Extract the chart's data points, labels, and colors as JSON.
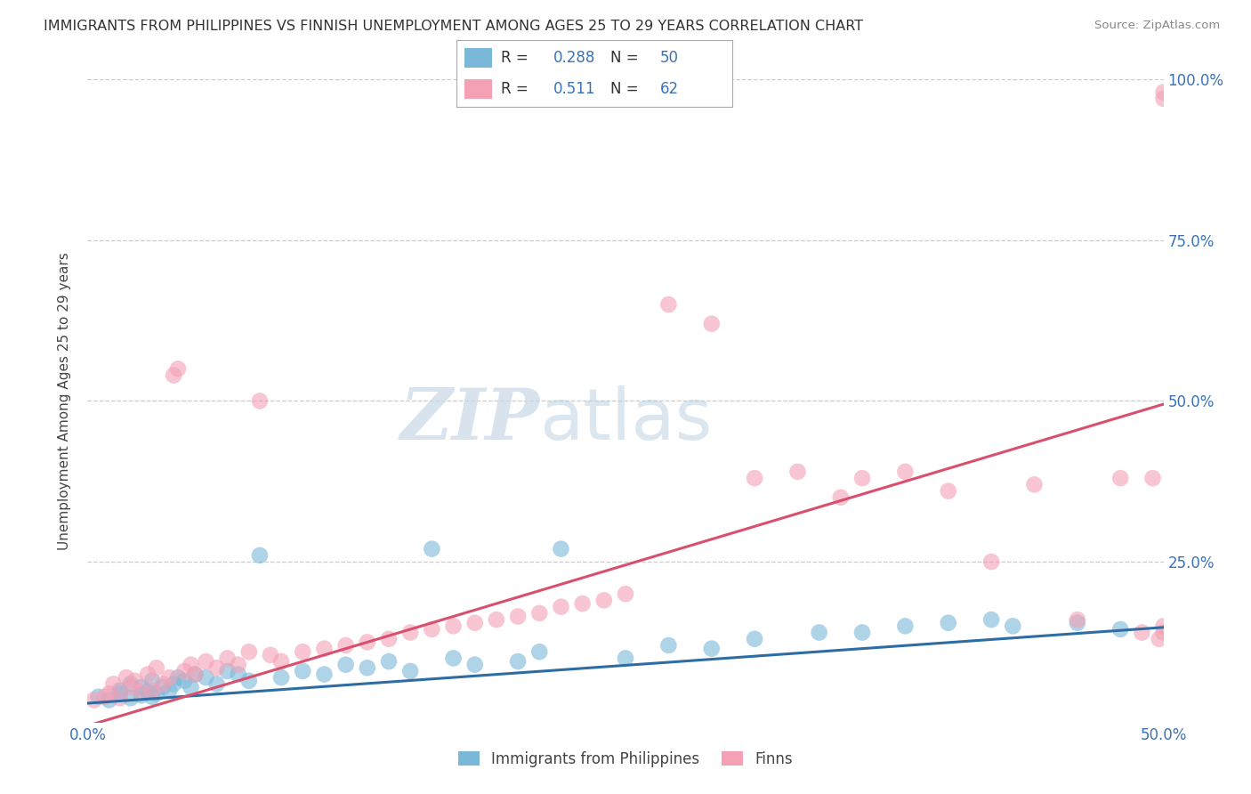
{
  "title": "IMMIGRANTS FROM PHILIPPINES VS FINNISH UNEMPLOYMENT AMONG AGES 25 TO 29 YEARS CORRELATION CHART",
  "source": "Source: ZipAtlas.com",
  "ylabel": "Unemployment Among Ages 25 to 29 years",
  "xlim": [
    0.0,
    0.5
  ],
  "ylim": [
    0.0,
    1.0
  ],
  "yticks": [
    0.0,
    0.25,
    0.5,
    0.75,
    1.0
  ],
  "ytick_labels_right": [
    "",
    "25.0%",
    "50.0%",
    "75.0%",
    "100.0%"
  ],
  "xticks": [
    0.0,
    0.1,
    0.2,
    0.3,
    0.4,
    0.5
  ],
  "xtick_labels": [
    "0.0%",
    "",
    "",
    "",
    "",
    "50.0%"
  ],
  "blue_R": 0.288,
  "blue_N": 50,
  "pink_R": 0.511,
  "pink_N": 62,
  "blue_color": "#7ab8d9",
  "pink_color": "#f4a0b5",
  "blue_line_color": "#2e6da4",
  "pink_line_color": "#d94f6e",
  "watermark_zip": "ZIP",
  "watermark_atlas": "atlas",
  "legend_label_blue": "Immigrants from Philippines",
  "legend_label_pink": "Finns",
  "blue_scatter_x": [
    0.005,
    0.01,
    0.015,
    0.015,
    0.02,
    0.02,
    0.025,
    0.025,
    0.028,
    0.03,
    0.03,
    0.032,
    0.035,
    0.038,
    0.04,
    0.042,
    0.045,
    0.048,
    0.05,
    0.055,
    0.06,
    0.065,
    0.07,
    0.075,
    0.08,
    0.09,
    0.1,
    0.11,
    0.12,
    0.13,
    0.14,
    0.15,
    0.16,
    0.17,
    0.18,
    0.2,
    0.21,
    0.22,
    0.25,
    0.27,
    0.29,
    0.31,
    0.34,
    0.36,
    0.38,
    0.4,
    0.42,
    0.43,
    0.46,
    0.48
  ],
  "blue_scatter_y": [
    0.04,
    0.035,
    0.045,
    0.05,
    0.038,
    0.06,
    0.042,
    0.055,
    0.048,
    0.04,
    0.065,
    0.045,
    0.055,
    0.05,
    0.06,
    0.07,
    0.065,
    0.055,
    0.075,
    0.07,
    0.06,
    0.08,
    0.075,
    0.065,
    0.26,
    0.07,
    0.08,
    0.075,
    0.09,
    0.085,
    0.095,
    0.08,
    0.27,
    0.1,
    0.09,
    0.095,
    0.11,
    0.27,
    0.1,
    0.12,
    0.115,
    0.13,
    0.14,
    0.14,
    0.15,
    0.155,
    0.16,
    0.15,
    0.155,
    0.145
  ],
  "pink_scatter_x": [
    0.003,
    0.008,
    0.01,
    0.012,
    0.015,
    0.018,
    0.02,
    0.022,
    0.025,
    0.028,
    0.03,
    0.032,
    0.035,
    0.038,
    0.04,
    0.042,
    0.045,
    0.048,
    0.05,
    0.055,
    0.06,
    0.065,
    0.07,
    0.075,
    0.08,
    0.085,
    0.09,
    0.1,
    0.11,
    0.12,
    0.13,
    0.14,
    0.15,
    0.16,
    0.17,
    0.18,
    0.19,
    0.2,
    0.21,
    0.22,
    0.23,
    0.24,
    0.25,
    0.27,
    0.29,
    0.31,
    0.33,
    0.35,
    0.36,
    0.38,
    0.4,
    0.42,
    0.44,
    0.46,
    0.48,
    0.49,
    0.495,
    0.498,
    0.5,
    0.5,
    0.5,
    0.5
  ],
  "pink_scatter_y": [
    0.035,
    0.04,
    0.045,
    0.06,
    0.038,
    0.07,
    0.055,
    0.065,
    0.048,
    0.075,
    0.05,
    0.085,
    0.06,
    0.07,
    0.54,
    0.55,
    0.08,
    0.09,
    0.075,
    0.095,
    0.085,
    0.1,
    0.09,
    0.11,
    0.5,
    0.105,
    0.095,
    0.11,
    0.115,
    0.12,
    0.125,
    0.13,
    0.14,
    0.145,
    0.15,
    0.155,
    0.16,
    0.165,
    0.17,
    0.18,
    0.185,
    0.19,
    0.2,
    0.65,
    0.62,
    0.38,
    0.39,
    0.35,
    0.38,
    0.39,
    0.36,
    0.25,
    0.37,
    0.16,
    0.38,
    0.14,
    0.38,
    0.13,
    0.15,
    0.14,
    0.98,
    0.97
  ]
}
